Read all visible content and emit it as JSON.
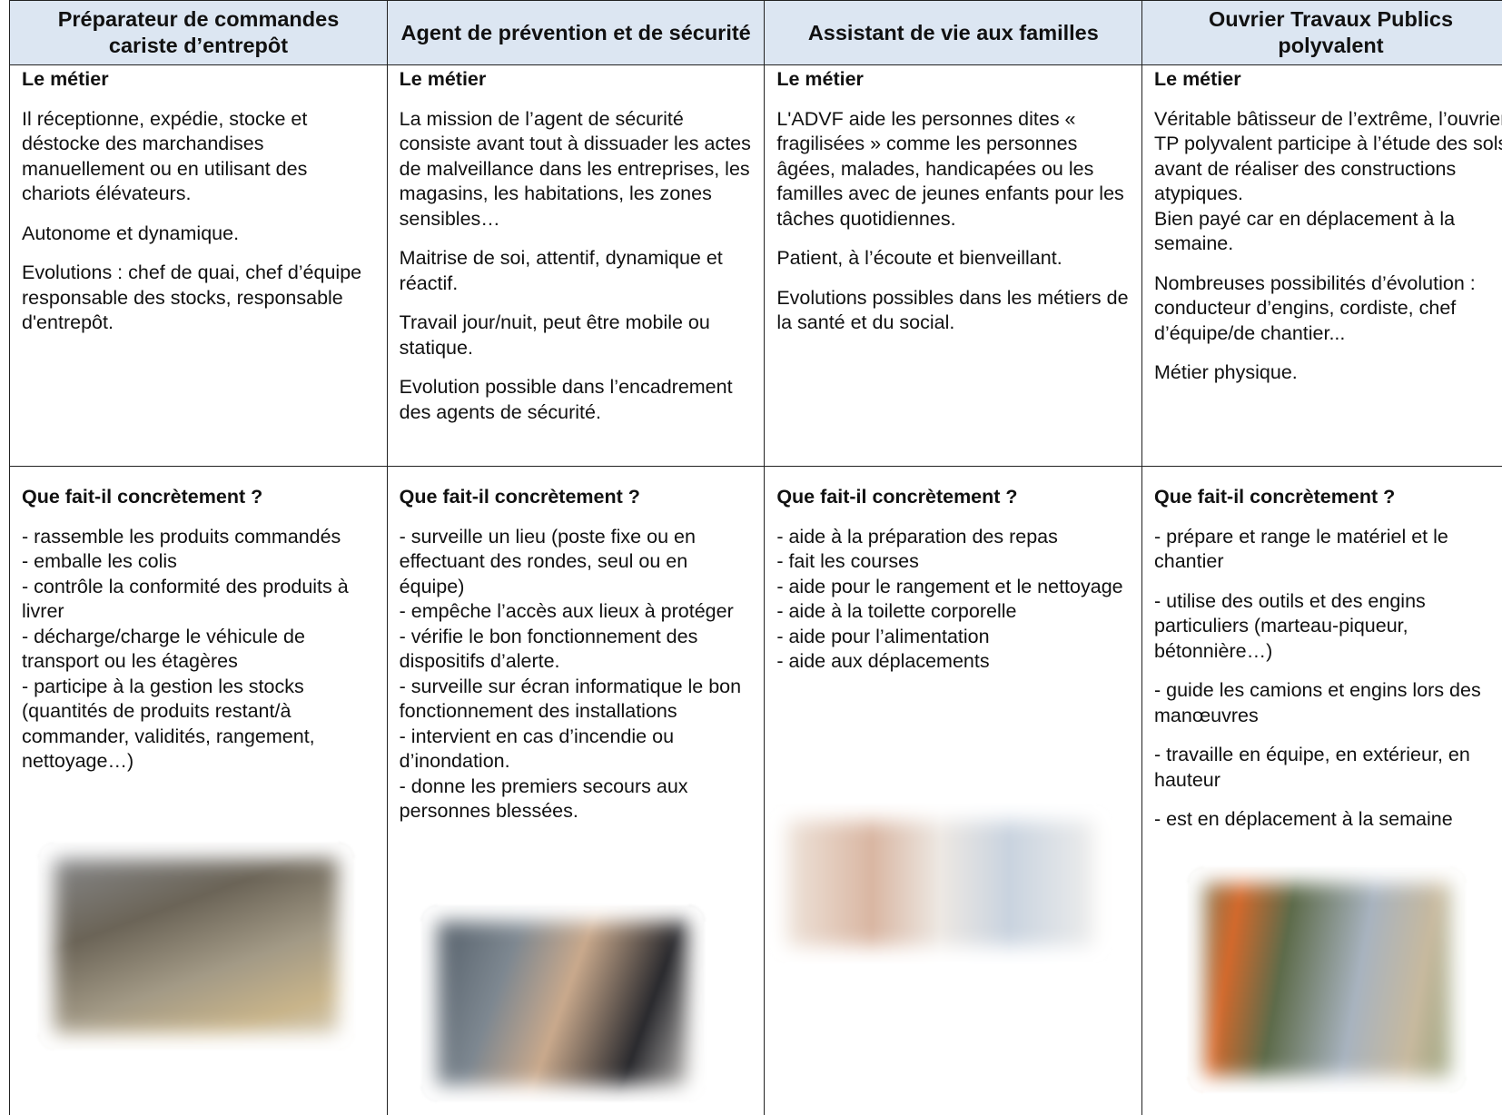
{
  "columns": [
    {
      "title": "Préparateur de commandes cariste d’entrepôt",
      "metier": {
        "heading": "Le métier",
        "paragraphs": [
          [
            "Il réceptionne, expédie, stocke et déstocke des marchandises manuellement ou en utilisant des chariots élévateurs."
          ],
          [
            "Autonome et dynamique."
          ],
          [
            "Evolutions : chef de quai, chef d’équipe responsable des stocks, responsable d'entrepôt."
          ]
        ]
      },
      "concret": {
        "heading": "Que fait-il concrètement ?",
        "paragraphs": [
          [
            "- rassemble les produits commandés",
            "- emballe les colis",
            "- contrôle la conformité des produits à livrer",
            "- décharge/charge le véhicule de transport ou les étagères",
            "- participe à la gestion les stocks (quantités de produits restant/à commander, validités, rangement, nettoyage…)"
          ]
        ]
      }
    },
    {
      "title": "Agent de prévention et de sécurité",
      "metier": {
        "heading": "Le métier",
        "paragraphs": [
          [
            "La mission de l’agent de sécurité consiste avant tout à dissuader les actes de malveillance dans les entreprises, les magasins, les habitations, les zones sensibles…"
          ],
          [
            "Maitrise de soi, attentif, dynamique et réactif."
          ],
          [
            "Travail jour/nuit, peut être mobile ou statique."
          ],
          [
            "Evolution possible dans l’encadrement des agents de sécurité."
          ]
        ]
      },
      "concret": {
        "heading": "Que fait-il concrètement ?",
        "paragraphs": [
          [
            "- surveille un lieu (poste fixe ou en effectuant des rondes, seul ou en équipe)",
            "- empêche l’accès aux lieux à protéger",
            "- vérifie le bon fonctionnement des dispositifs d’alerte.",
            "- surveille sur écran informatique le bon fonctionnement des installations",
            "- intervient en cas d’incendie ou d’inondation.",
            "- donne les premiers secours aux personnes blessées."
          ]
        ]
      }
    },
    {
      "title": "Assistant de vie aux familles",
      "metier": {
        "heading": "Le métier",
        "paragraphs": [
          [
            "L'ADVF aide les personnes dites « fragilisées » comme les personnes âgées, malades, handicapées ou les familles avec de jeunes enfants pour les tâches quotidiennes."
          ],
          [
            "Patient, à l’écoute et bienveillant."
          ],
          [
            "Evolutions possibles dans les métiers de la santé et du social."
          ]
        ]
      },
      "concret": {
        "heading": "Que fait-il concrètement ?",
        "paragraphs": [
          [
            "- aide à la préparation des repas",
            "- fait les courses",
            "- aide pour le rangement et le nettoyage",
            "- aide à la toilette corporelle",
            "- aide pour l’alimentation",
            "- aide aux déplacements"
          ]
        ]
      }
    },
    {
      "title": "Ouvrier Travaux Publics polyvalent",
      "metier": {
        "heading": "Le métier",
        "paragraphs": [
          [
            "Véritable bâtisseur de l’extrême, l’ouvrier TP polyvalent participe à l’étude des sols avant de réaliser des constructions atypiques.",
            "Bien payé car en déplacement à la semaine."
          ],
          [
            "Nombreuses possibilités d’évolution : conducteur d’engins, cordiste, chef d’équipe/de chantier..."
          ],
          [
            "Métier physique."
          ]
        ]
      },
      "concret": {
        "heading": "Que fait-il concrètement ?",
        "paragraphs": [
          [
            "- prépare et range le matériel et le chantier"
          ],
          [
            "- utilise des outils et des engins particuliers (marteau-piqueur, bétonnière…)"
          ],
          [
            "- guide les camions et engins lors des manœuvres"
          ],
          [
            "- travaille en équipe, en extérieur, en hauteur"
          ],
          [
            "- est en déplacement à la semaine"
          ]
        ]
      }
    }
  ]
}
